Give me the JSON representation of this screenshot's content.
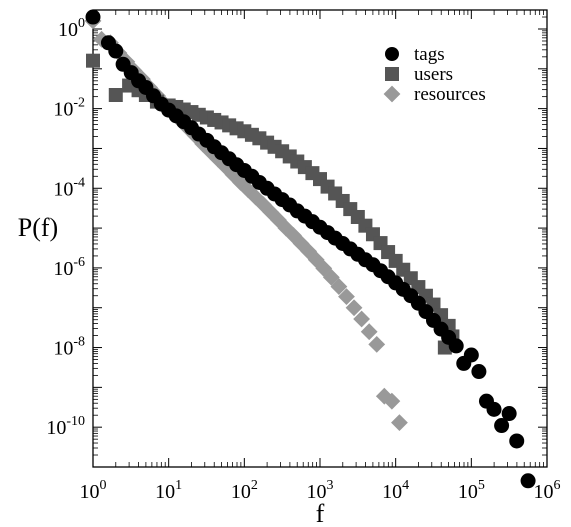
{
  "chart_data": {
    "type": "scatter",
    "xlabel": "f",
    "ylabel": "P(f)",
    "xscale": "log",
    "yscale": "log",
    "xlim": [
      1,
      1000000
    ],
    "ylim": [
      1e-11,
      3
    ],
    "x_ticks": [
      {
        "base": "10",
        "exp": "0",
        "value": 1
      },
      {
        "base": "10",
        "exp": "1",
        "value": 10
      },
      {
        "base": "10",
        "exp": "2",
        "value": 100
      },
      {
        "base": "10",
        "exp": "3",
        "value": 1000
      },
      {
        "base": "10",
        "exp": "4",
        "value": 10000
      },
      {
        "base": "10",
        "exp": "5",
        "value": 100000
      },
      {
        "base": "10",
        "exp": "6",
        "value": 1000000
      }
    ],
    "y_ticks": [
      {
        "base": "10",
        "exp": "0",
        "value": 1
      },
      {
        "base": "10",
        "exp": "-2",
        "value": 0.01
      },
      {
        "base": "10",
        "exp": "-4",
        "value": 0.0001
      },
      {
        "base": "10",
        "exp": "-6",
        "value": 1e-06
      },
      {
        "base": "10",
        "exp": "-8",
        "value": 1e-08
      },
      {
        "base": "10",
        "exp": "-10",
        "value": 1e-10
      }
    ],
    "legend_position": "top-right",
    "series": [
      {
        "name": "tags",
        "marker": "circle",
        "color": "#000000",
        "points": [
          [
            1.0,
            2.0
          ],
          [
            1.6,
            0.45
          ],
          [
            2.0,
            0.28
          ],
          [
            2.5,
            0.13
          ],
          [
            3.2,
            0.08
          ],
          [
            4.0,
            0.05
          ],
          [
            5.0,
            0.034
          ],
          [
            6.3,
            0.021
          ],
          [
            8.0,
            0.013
          ],
          [
            10,
            0.0092
          ],
          [
            12.6,
            0.0066
          ],
          [
            15.8,
            0.0047
          ],
          [
            20,
            0.0033
          ],
          [
            25,
            0.0023
          ],
          [
            32,
            0.0016
          ],
          [
            40,
            0.0011
          ],
          [
            50,
            0.00078
          ],
          [
            63,
            0.00055
          ],
          [
            79,
            0.00039
          ],
          [
            100,
            0.00028
          ],
          [
            126,
            0.0002
          ],
          [
            158,
            0.00014
          ],
          [
            200,
            0.0001
          ],
          [
            251,
            7.2e-05
          ],
          [
            316,
            5.2e-05
          ],
          [
            398,
            3.8e-05
          ],
          [
            501,
            2.7e-05
          ],
          [
            631,
            2e-05
          ],
          [
            794,
            1.45e-05
          ],
          [
            1000,
            1.05e-05
          ],
          [
            1259,
            7.7e-06
          ],
          [
            1585,
            5.6e-06
          ],
          [
            1995,
            4.1e-06
          ],
          [
            2512,
            3e-06
          ],
          [
            3162,
            2.2e-06
          ],
          [
            3981,
            1.6e-06
          ],
          [
            5012,
            1.2e-06
          ],
          [
            6310,
            8.5e-07
          ],
          [
            7943,
            6e-07
          ],
          [
            10000,
            4.2e-07
          ],
          [
            12590,
            2.9e-07
          ],
          [
            15850,
            2e-07
          ],
          [
            19950,
            1.3e-07
          ],
          [
            25120,
            8e-08
          ],
          [
            31620,
            4.8e-08
          ],
          [
            39810,
            2.9e-08
          ],
          [
            50120,
            1.8e-08
          ],
          [
            63100,
            1.1e-08
          ],
          [
            79430,
            4e-09
          ],
          [
            100000,
            6.5e-09
          ],
          [
            125900,
            2.5e-09
          ],
          [
            158500,
            4.5e-10
          ],
          [
            199500,
            2.8e-10
          ],
          [
            251200,
            1.1e-10
          ],
          [
            316200,
            2.2e-10
          ],
          [
            398100,
            4.5e-11
          ],
          [
            562300,
            4.5e-12
          ]
        ]
      },
      {
        "name": "users",
        "marker": "square",
        "color": "#555555",
        "points": [
          [
            1.0,
            0.16
          ],
          [
            2.0,
            0.022
          ],
          [
            3.0,
            0.038
          ],
          [
            4.0,
            0.029
          ],
          [
            5.0,
            0.022
          ],
          [
            7.0,
            0.015
          ],
          [
            10,
            0.012
          ],
          [
            12.6,
            0.011
          ],
          [
            15.8,
            0.0095
          ],
          [
            20,
            0.0082
          ],
          [
            25,
            0.007
          ],
          [
            32,
            0.006
          ],
          [
            40,
            0.0052
          ],
          [
            50,
            0.0045
          ],
          [
            63,
            0.0038
          ],
          [
            79,
            0.0032
          ],
          [
            100,
            0.0027
          ],
          [
            126,
            0.0022
          ],
          [
            158,
            0.0018
          ],
          [
            200,
            0.0014
          ],
          [
            251,
            0.0011
          ],
          [
            316,
            0.00085
          ],
          [
            398,
            0.00063
          ],
          [
            501,
            0.00047
          ],
          [
            631,
            0.00034
          ],
          [
            794,
            0.00024
          ],
          [
            1000,
            0.00017
          ],
          [
            1259,
            0.00011
          ],
          [
            1585,
            7.4e-05
          ],
          [
            1995,
            4.8e-05
          ],
          [
            2512,
            3e-05
          ],
          [
            3162,
            1.9e-05
          ],
          [
            3981,
            1.15e-05
          ],
          [
            5012,
            7e-06
          ],
          [
            6310,
            4.2e-06
          ],
          [
            7943,
            2.5e-06
          ],
          [
            10000,
            1.5e-06
          ],
          [
            12590,
            9e-07
          ],
          [
            15850,
            5.5e-07
          ],
          [
            19950,
            3.3e-07
          ],
          [
            25120,
            2e-07
          ],
          [
            31620,
            1.2e-07
          ],
          [
            39810,
            6.5e-08
          ],
          [
            44670,
            1e-08
          ],
          [
            50120,
            3.5e-08
          ],
          [
            56230,
            1.9e-08
          ]
        ]
      },
      {
        "name": "resources",
        "marker": "diamond",
        "color": "#999999",
        "points": [
          [
            1.0,
            1.6
          ],
          [
            1.3,
            0.55
          ],
          [
            1.7,
            0.45
          ],
          [
            2.2,
            0.25
          ],
          [
            2.8,
            0.15
          ],
          [
            3.5,
            0.09
          ],
          [
            4.5,
            0.055
          ],
          [
            5.6,
            0.034
          ],
          [
            7.1,
            0.021
          ],
          [
            8.9,
            0.013
          ],
          [
            11.2,
            0.0082
          ],
          [
            14.1,
            0.0052
          ],
          [
            17.8,
            0.0033
          ],
          [
            22.4,
            0.0021
          ],
          [
            28.2,
            0.0013
          ],
          [
            35.5,
            0.00084
          ],
          [
            44.7,
            0.00054
          ],
          [
            56.2,
            0.00035
          ],
          [
            70.8,
            0.00022
          ],
          [
            89.1,
            0.00014
          ],
          [
            112,
            9.2e-05
          ],
          [
            141,
            6e-05
          ],
          [
            178,
            3.9e-05
          ],
          [
            224,
            2.5e-05
          ],
          [
            282,
            1.6e-05
          ],
          [
            355,
            1e-05
          ],
          [
            447,
            6.5e-06
          ],
          [
            562,
            4.1e-06
          ],
          [
            708,
            2.6e-06
          ],
          [
            891,
            1.6e-06
          ],
          [
            1122,
            9.7e-07
          ],
          [
            1413,
            5.8e-07
          ],
          [
            1778,
            3.4e-07
          ],
          [
            2239,
            1.9e-07
          ],
          [
            2818,
            1e-07
          ],
          [
            3548,
            5.2e-08
          ],
          [
            4467,
            2.5e-08
          ],
          [
            5623,
            1.2e-08
          ],
          [
            7079,
            6e-10
          ],
          [
            8913,
            4.5e-10
          ],
          [
            11220,
            1.3e-10
          ]
        ]
      }
    ]
  }
}
